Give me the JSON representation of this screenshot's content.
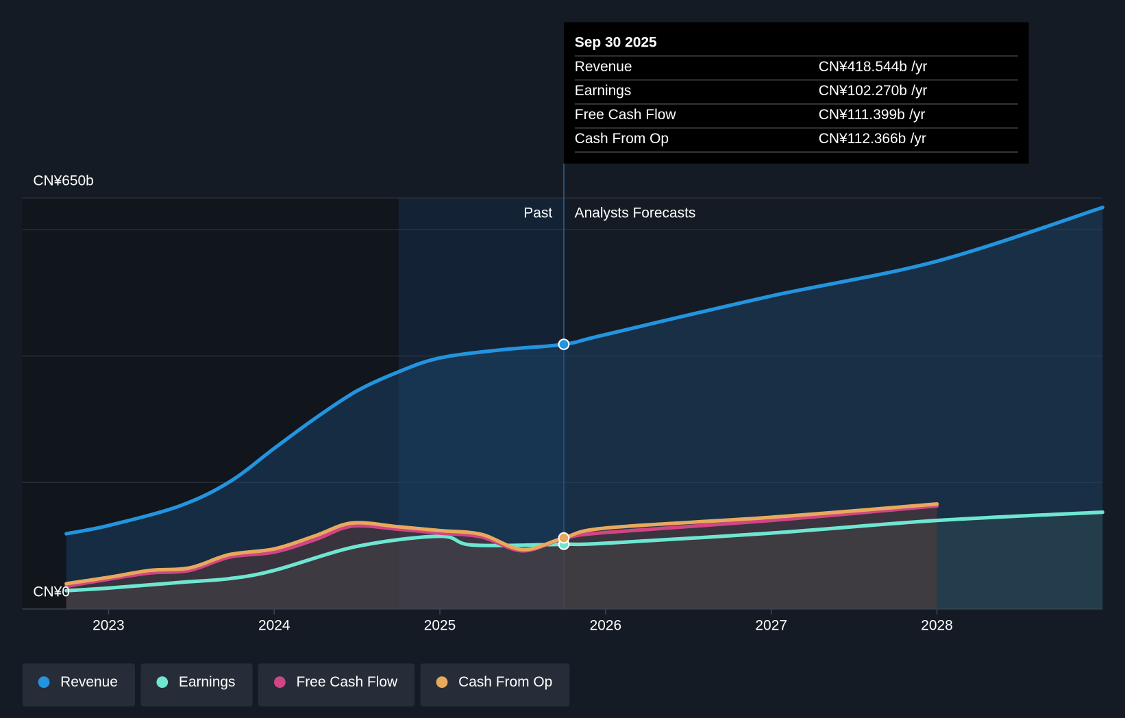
{
  "chart_data": {
    "type": "area-line",
    "xlim": [
      2022.48,
      2029
    ],
    "xticks": [
      2023,
      2024,
      2025,
      2026,
      2027,
      2028
    ],
    "ylim": [
      0,
      650
    ],
    "yticks": [
      {
        "value": 0,
        "label": "CN¥0"
      },
      {
        "value": 650,
        "label": "CN¥650b"
      }
    ],
    "grid_values": [
      200,
      400,
      600,
      650
    ],
    "past_label": "Past",
    "forecast_label": "Analysts Forecasts",
    "divider_x": 2025.748,
    "highlight_from": 2024.75,
    "series": [
      {
        "name": "Revenue",
        "color": "#2394df",
        "x": [
          2022.745,
          2023,
          2023.43,
          2023.73,
          2024,
          2024.25,
          2024.5,
          2024.75,
          2025,
          2025.375,
          2025.748,
          2026,
          2027,
          2028,
          2029
        ],
        "values": [
          119,
          132,
          163,
          201,
          254,
          302,
          345,
          375,
          397,
          410,
          418.544,
          434,
          495,
          550,
          635
        ]
      },
      {
        "name": "Earnings",
        "color": "#6ee6d1",
        "x": [
          2022.745,
          2023,
          2023.43,
          2023.73,
          2024,
          2024.5,
          2025,
          2025.2,
          2025.748,
          2026,
          2027,
          2028,
          2029
        ],
        "values": [
          29,
          33,
          42,
          48,
          61,
          99,
          115,
          101,
          102.27,
          104,
          120,
          140,
          153
        ]
      },
      {
        "name": "Free Cash Flow",
        "color": "#d14585",
        "x": [
          2022.745,
          2023,
          2023.25,
          2023.49,
          2023.73,
          2024,
          2024.25,
          2024.47,
          2024.75,
          2025,
          2025.25,
          2025.5,
          2025.748,
          2026,
          2027,
          2028
        ],
        "values": [
          36,
          47,
          57,
          61,
          82,
          90,
          110,
          131,
          126,
          120,
          114,
          92,
          111.399,
          121,
          140,
          163
        ]
      },
      {
        "name": "Cash From Op",
        "color": "#e8a95c",
        "x": [
          2022.745,
          2023,
          2023.25,
          2023.49,
          2023.73,
          2024,
          2024.25,
          2024.47,
          2024.75,
          2025,
          2025.25,
          2025.5,
          2025.748,
          2026,
          2027,
          2028
        ],
        "values": [
          40,
          50,
          61,
          65,
          86,
          95,
          116,
          136,
          130,
          124,
          118,
          94,
          112.366,
          128,
          145,
          166
        ]
      }
    ],
    "tooltip": {
      "date": "Sep 30 2025",
      "unit": "/yr",
      "rows": [
        {
          "value": "CN¥418.544b"
        },
        {
          "value": "CN¥102.270b"
        },
        {
          "value": "CN¥111.399b"
        },
        {
          "value": "CN¥112.366b"
        }
      ]
    }
  }
}
